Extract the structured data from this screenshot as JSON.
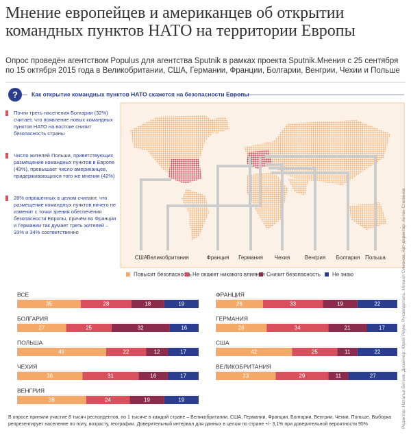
{
  "header": {
    "title": "Мнение европейцев и американцев об открытии командных пунктов НАТО на территории Европы",
    "subtitle": "Опрос проведён агентством Populus для агентства Sputnik в рамках проекта Sputnik.Мнения с 25 сентября по 15 октября 2015 года в Великобритании, США, Германии, Франции, Болгарии, Венгрии, Чехии и Польше"
  },
  "question": "Как открытие командных пунктов НАТО скажется на безопасности Европы",
  "notes": [
    "Почти треть населения Болгарии (32%) считает, что появление новых командных пунктов НАТО на востоке снизит безопасность страны",
    "Число жителей Польши, приветствующих размещение командных пунктов в Европе (49%), превышает число американцев, придерживающихся того же мнения (42%)",
    "28% опрошенных в целом считают, что размещение командных пунктов ничего не изменит с точки зрения обеспечения безопасности Европы, причём во Франции и Германии так думает треть жителей – 33% и 34% соответственно"
  ],
  "map_labels": [
    "США",
    "Великобритания",
    "Франция",
    "Германия",
    "Чехия",
    "Венгрия",
    "Болгария",
    "Польша"
  ],
  "credits": "Редактор: Наталья Ветник. Дизайнер: Юрий Реуке. Руководитель: Михаил Симонов. Арт-директор: Антон Степанов",
  "footer": "В опросе приняли участие 8 тысяч респондентов, по 1 тысяче в каждой стране – Великобритании, США, Германии, Франции, Болгарии, Венгрии, Чехии, Польше. Выборка репрезентирует население по полу, возрасту, географии. Доверительный интервал для данных в целом по стране +/- 3,1% при доверительной вероятности 95%",
  "chart_data": {
    "type": "bar",
    "orientation": "horizontal",
    "stacked": true,
    "categories": [
      "ВСЕ",
      "БОЛГАРИЯ",
      "ПОЛЬША",
      "ЧЕХИЯ",
      "ВЕНГРИЯ",
      "ФРАНЦИЯ",
      "ГЕРМАНИЯ",
      "США",
      "ВЕЛИКОБРИТАНИЯ"
    ],
    "series": [
      {
        "name": "Повысит безопасность",
        "color": "#f5a968",
        "values": [
          35,
          27,
          49,
          36,
          38,
          26,
          28,
          42,
          33
        ]
      },
      {
        "name": "Не окажет никакого влияния",
        "color": "#d8505e",
        "values": [
          28,
          25,
          22,
          31,
          24,
          33,
          34,
          25,
          29
        ]
      },
      {
        "name": "Снизит безопасность",
        "color": "#8c2c4c",
        "values": [
          18,
          32,
          12,
          16,
          19,
          19,
          21,
          11,
          11
        ]
      },
      {
        "name": "Не знаю",
        "color": "#2b3d8f",
        "values": [
          19,
          16,
          17,
          17,
          19,
          22,
          17,
          22,
          27
        ]
      }
    ]
  }
}
